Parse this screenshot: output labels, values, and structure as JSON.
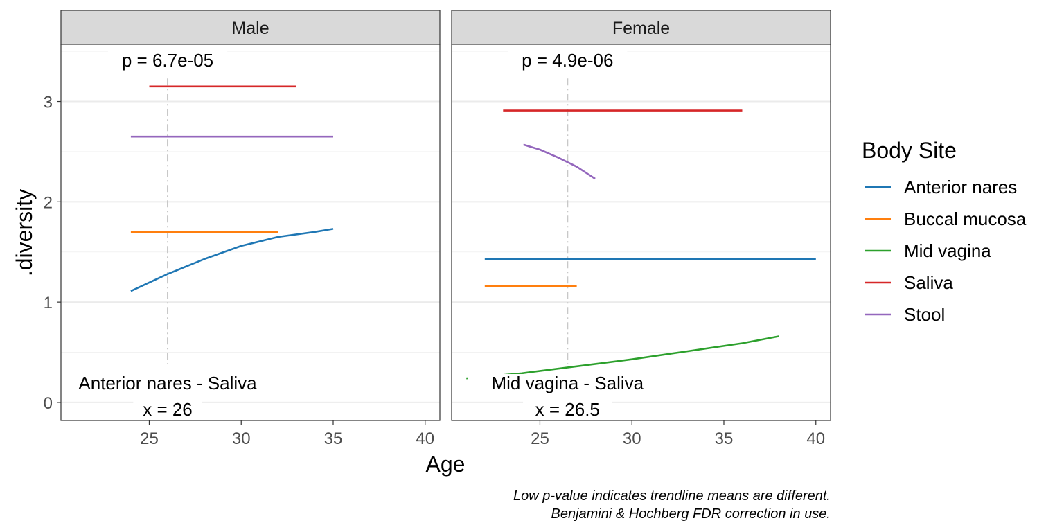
{
  "chart_data": {
    "type": "line",
    "xlabel": "Age",
    "ylabel": ".diversity",
    "xlim": [
      20.2,
      40.8
    ],
    "ylim": [
      -0.18,
      3.57
    ],
    "x_ticks": [
      25,
      30,
      35,
      40
    ],
    "y_ticks": [
      0,
      1,
      2,
      3
    ],
    "grid": true,
    "legend": {
      "title": "Body Site",
      "placement": "right",
      "entries": [
        {
          "name": "Anterior nares",
          "color": "#1f77b4"
        },
        {
          "name": "Buccal mucosa",
          "color": "#ff7f0e"
        },
        {
          "name": "Mid vagina",
          "color": "#2ca02c"
        },
        {
          "name": "Saliva",
          "color": "#d62728"
        },
        {
          "name": "Stool",
          "color": "#9467bd"
        }
      ]
    },
    "panels": [
      {
        "strip": "Male",
        "p_label": "p = 6.7e-05",
        "comparison_label": "Anterior nares - Saliva",
        "x_label": "x = 26",
        "vline_x": 26,
        "series": [
          {
            "name": "Saliva",
            "x": [
              25,
              33
            ],
            "y": [
              3.15,
              3.15
            ]
          },
          {
            "name": "Stool",
            "x": [
              24,
              35
            ],
            "y": [
              2.65,
              2.65
            ]
          },
          {
            "name": "Buccal mucosa",
            "x": [
              24,
              32
            ],
            "y": [
              1.7,
              1.7
            ]
          },
          {
            "name": "Anterior nares",
            "x": [
              24,
              26,
              28,
              30,
              32,
              34,
              35
            ],
            "y": [
              1.11,
              1.28,
              1.43,
              1.56,
              1.65,
              1.7,
              1.73
            ]
          }
        ]
      },
      {
        "strip": "Female",
        "p_label": "p = 4.9e-06",
        "comparison_label": "Mid vagina - Saliva",
        "x_label": "x = 26.5",
        "vline_x": 26.5,
        "series": [
          {
            "name": "Saliva",
            "x": [
              23,
              36
            ],
            "y": [
              2.91,
              2.91
            ]
          },
          {
            "name": "Stool",
            "x": [
              24.1,
              25,
              26,
              27,
              28
            ],
            "y": [
              2.57,
              2.52,
              2.44,
              2.35,
              2.23
            ]
          },
          {
            "name": "Anterior nares",
            "x": [
              22,
              40
            ],
            "y": [
              1.43,
              1.43
            ]
          },
          {
            "name": "Buccal mucosa",
            "x": [
              22,
              27
            ],
            "y": [
              1.16,
              1.16
            ]
          },
          {
            "name": "Mid vagina",
            "x": [
              21,
              24,
              27,
              30,
              33,
              36,
              38
            ],
            "y": [
              0.24,
              0.29,
              0.36,
              0.43,
              0.51,
              0.59,
              0.66
            ]
          }
        ]
      }
    ]
  },
  "caption": {
    "line1": "Low p-value indicates trendline means are different.",
    "line2": "Benjamini & Hochberg FDR correction in use."
  }
}
